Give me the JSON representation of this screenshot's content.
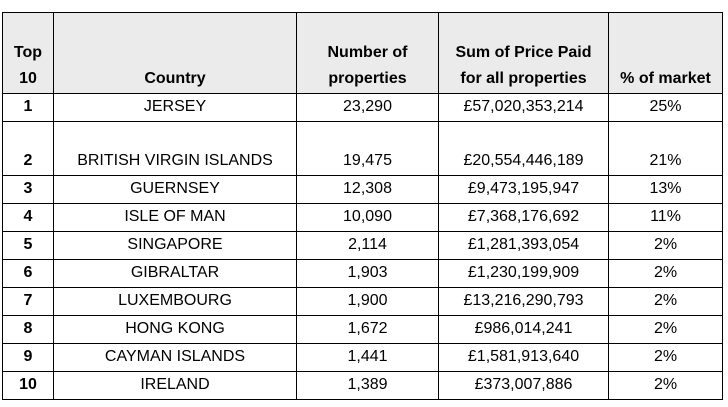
{
  "table": {
    "headers": {
      "rank": "Top 10",
      "country": "Country",
      "count": "Number of properties",
      "sum": "Sum of Price Paid for all properties",
      "share": "% of market"
    },
    "rows": [
      {
        "rank": "1",
        "country": "JERSEY",
        "count": "23,290",
        "sum": "£57,020,353,214",
        "share": "25%"
      },
      {
        "rank": "2",
        "country": "BRITISH VIRGIN ISLANDS",
        "count": "19,475",
        "sum": "£20,554,446,189",
        "share": "21%"
      },
      {
        "rank": "3",
        "country": "GUERNSEY",
        "count": "12,308",
        "sum": "£9,473,195,947",
        "share": "13%"
      },
      {
        "rank": "4",
        "country": "ISLE OF MAN",
        "count": "10,090",
        "sum": "£7,368,176,692",
        "share": "11%"
      },
      {
        "rank": "5",
        "country": "SINGAPORE",
        "count": "2,114",
        "sum": "£1,281,393,054",
        "share": "2%"
      },
      {
        "rank": "6",
        "country": "GIBRALTAR",
        "count": "1,903",
        "sum": "£1,230,199,909",
        "share": "2%"
      },
      {
        "rank": "7",
        "country": "LUXEMBOURG",
        "count": "1,900",
        "sum": "£13,216,290,793",
        "share": "2%"
      },
      {
        "rank": "8",
        "country": "HONG KONG",
        "count": "1,672",
        "sum": "£986,014,241",
        "share": "2%"
      },
      {
        "rank": "9",
        "country": "CAYMAN ISLANDS",
        "count": "1,441",
        "sum": "£1,581,913,640",
        "share": "2%"
      },
      {
        "rank": "10",
        "country": "IRELAND",
        "count": "1,389",
        "sum": "£373,007,886",
        "share": "2%"
      }
    ]
  }
}
